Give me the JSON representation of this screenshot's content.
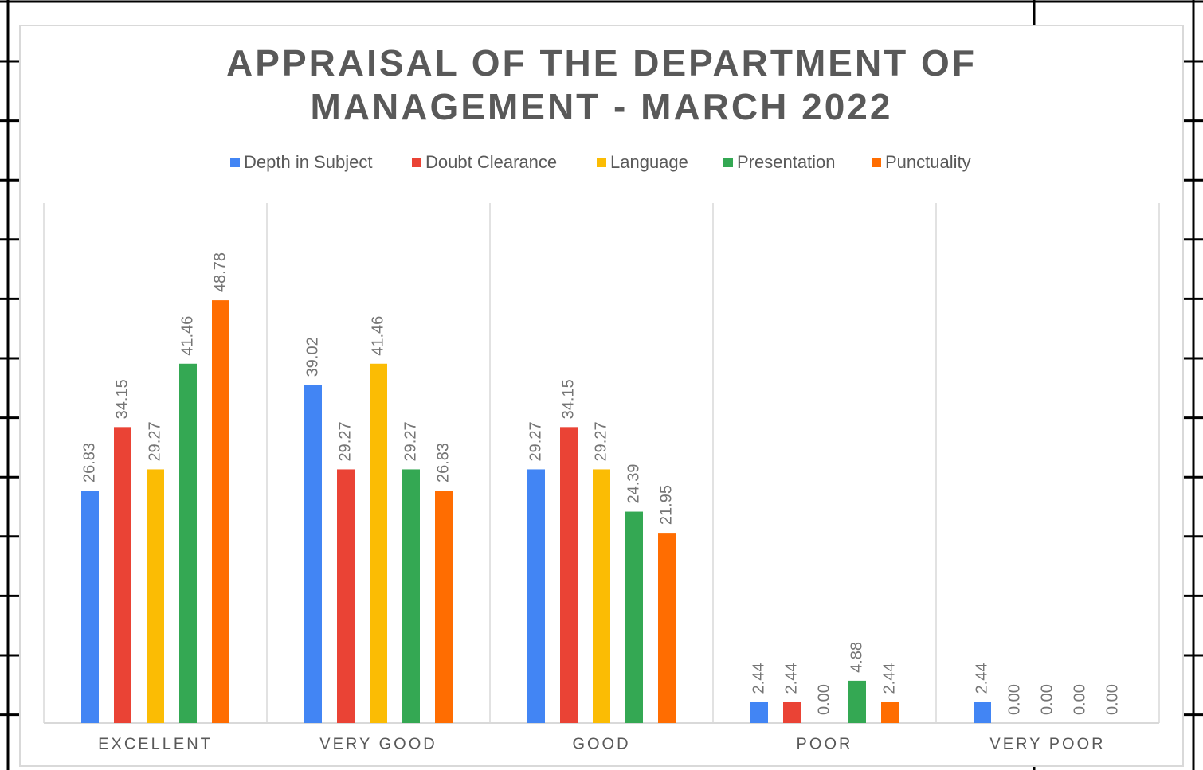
{
  "chart_data": {
    "type": "bar",
    "title": "APPRAISAL OF THE DEPARTMENT OF MANAGEMENT - MARCH 2022",
    "categories": [
      "EXCELLENT",
      "VERY GOOD",
      "GOOD",
      "POOR",
      "VERY POOR"
    ],
    "ylim": [
      0,
      60
    ],
    "series": [
      {
        "name": "Depth in Subject",
        "color": "#4285f4",
        "values": [
          26.83,
          39.02,
          29.27,
          2.44,
          2.44
        ],
        "value_labels": [
          "26.83",
          "39.02",
          "29.27",
          "2.44",
          "2.44"
        ]
      },
      {
        "name": "Doubt Clearance",
        "color": "#ea4335",
        "values": [
          34.15,
          29.27,
          34.15,
          2.44,
          0
        ],
        "value_labels": [
          "34.15",
          "29.27",
          "34.15",
          "2.44",
          "0.00"
        ]
      },
      {
        "name": "Language",
        "color": "#fbbc04",
        "values": [
          29.27,
          41.46,
          29.27,
          0,
          0
        ],
        "value_labels": [
          "29.27",
          "41.46",
          "29.27",
          "0.00",
          "0.00"
        ]
      },
      {
        "name": "Presentation",
        "color": "#34a853",
        "values": [
          41.46,
          29.27,
          24.39,
          4.88,
          0
        ],
        "value_labels": [
          "41.46",
          "29.27",
          "24.39",
          "4.88",
          "0.00"
        ]
      },
      {
        "name": "Punctuality",
        "color": "#ff6d01",
        "values": [
          48.78,
          26.83,
          21.95,
          2.44,
          0
        ],
        "value_labels": [
          "48.78",
          "26.83",
          "21.95",
          "2.44",
          "0.00"
        ]
      }
    ]
  }
}
